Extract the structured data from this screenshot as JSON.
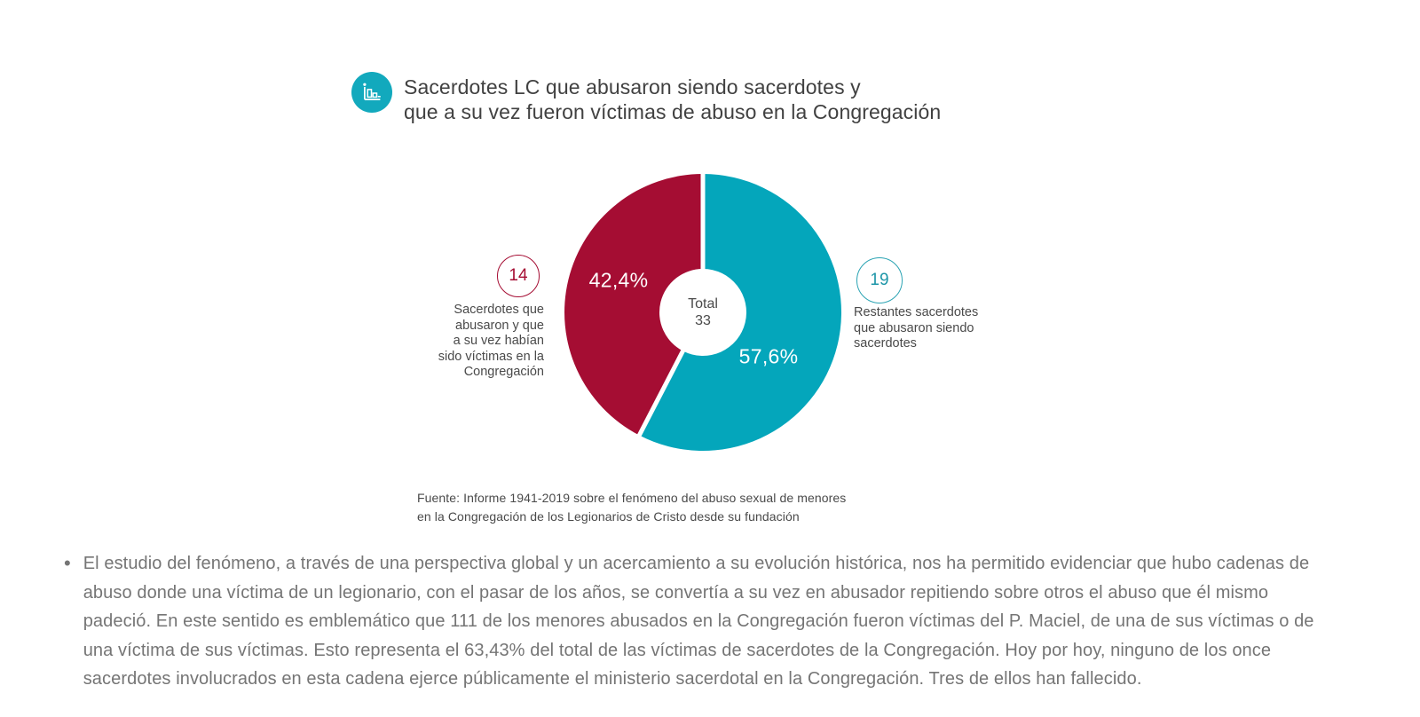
{
  "page": {
    "background": "#ffffff"
  },
  "header": {
    "icon": "bar-chart-icon",
    "icon_color": "#12a9bd"
  },
  "chart_data": {
    "type": "donut",
    "title": "Sacerdotes LC que abusaron siendo sacerdotes y\nque a su vez fueron víctimas de abuso en la Congregación",
    "center_label": "Total",
    "total": 33,
    "start_angle_deg": 0,
    "direction": "clockwise",
    "legend_position": "sides",
    "segments": [
      {
        "name": "Restantes sacerdotes que abusaron siendo sacerdotes",
        "label_lines": "Restantes sacerdotes\nque abusaron siendo\nsacerdotes",
        "count": 19,
        "pct_value": 57.6,
        "pct_label": "57,6%",
        "color": "#04a6bb"
      },
      {
        "name": "Sacerdotes que abusaron y que a su vez habían sido víctimas en la Congregación",
        "label_lines": "Sacerdotes que\nabusaron y que\na su vez habían\nsido víctimas en la\nCongregación",
        "count": 14,
        "pct_value": 42.4,
        "pct_label": "42,4%",
        "color": "#a50d33"
      }
    ],
    "source": "Fuente: Informe 1941-2019 sobre el fenómeno del abuso sexual de menores\nen la Congregación de los Legionarios de Cristo desde su fundación"
  },
  "commentary": {
    "bullet": "•",
    "text": "El estudio del fenómeno, a través de una perspectiva global y un acercamiento a su evolución histórica, nos ha permitido evidenciar que hubo cadenas de\nabuso donde una víctima de un legionario, con el pasar de los años, se convertía a su vez en abusador repitiendo sobre otros el abuso que él mismo\npadeció. En este sentido es emblemático que 111 de los menores abusados en la Congregación fueron víctimas del P. Maciel, de una de sus víctimas o de\nuna víctima de sus víctimas. Esto representa el 63,43% del total de las víctimas de sacerdotes de la Congregación. Hoy por hoy, ninguno de los once\nsacerdotes involucrados en esta cadena ejerce públicamente el ministerio sacerdotal en la Congregación. Tres de ellos han fallecido."
  }
}
